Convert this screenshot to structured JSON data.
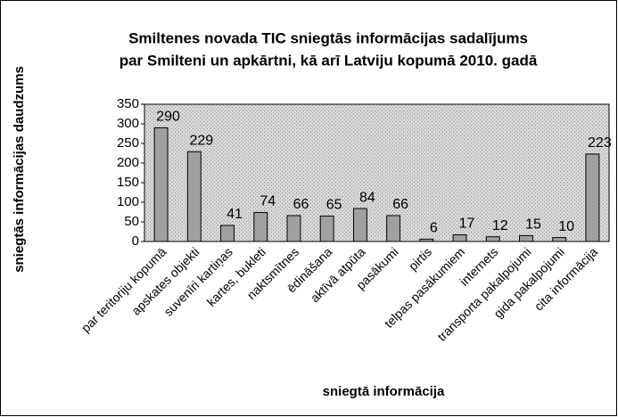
{
  "chart_data": {
    "type": "bar",
    "title": [
      "Smiltenes novada TIC sniegtās informācijas sadalījums",
      "par Smilteni un apkārtni, kā arī Latviju kopumā 2010. gadā"
    ],
    "xlabel": "sniegtā informācija",
    "ylabel": "sniegtās informācijas daudzums",
    "categories": [
      "par teritoriju kopumā",
      "apskates objekti",
      "suvenīri kartiņas",
      "kartes, bukleti",
      "naktsmītnes",
      "ēdināšana",
      "aktīvā atpūta",
      "pasākumi",
      "pirtis",
      "telpas pasākumiem",
      "internets",
      "transporta pakalpojumi",
      "gida pakalpojumi",
      "cita informācija"
    ],
    "values": [
      290,
      229,
      41,
      74,
      66,
      65,
      84,
      66,
      6,
      17,
      12,
      15,
      10,
      223
    ],
    "color": "#a0a0a0",
    "ylim": [
      0,
      350
    ],
    "yticks": [
      0,
      50,
      100,
      150,
      200,
      250,
      300,
      350
    ],
    "grid": false
  }
}
